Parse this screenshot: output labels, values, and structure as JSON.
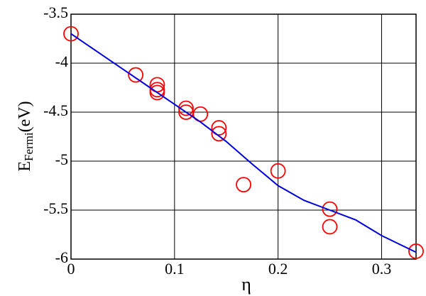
{
  "chart_data": {
    "type": "scatter",
    "xlabel": "η",
    "ylabel": "E",
    "ylabel_sub": "Fermi",
    "ylabel_unit": "(eV)",
    "xlim": [
      0,
      0.3333
    ],
    "ylim": [
      -6,
      -3.5
    ],
    "xticks": [
      0,
      0.1,
      0.2,
      0.3
    ],
    "yticks": [
      -6,
      -5.5,
      -5,
      -4.5,
      -4,
      -3.5
    ],
    "grid": true,
    "series": [
      {
        "type": "scatter",
        "color": "#ff0000",
        "x": [
          0,
          0.0625,
          0.0833,
          0.0833,
          0.0833,
          0.1111,
          0.1111,
          0.125,
          0.1429,
          0.1429,
          0.1667,
          0.2,
          0.25,
          0.25,
          0.3333
        ],
        "values": [
          -3.7,
          -4.12,
          -4.22,
          -4.27,
          -4.3,
          -4.46,
          -4.5,
          -4.52,
          -4.66,
          -4.72,
          -5.24,
          -5.1,
          -5.49,
          -5.67,
          -5.92
        ]
      },
      {
        "type": "line",
        "color": "#0000dd",
        "x": [
          0,
          0.025,
          0.05,
          0.075,
          0.1,
          0.125,
          0.15,
          0.175,
          0.2,
          0.225,
          0.25,
          0.275,
          0.3,
          0.3333
        ],
        "values": [
          -3.7,
          -3.88,
          -4.06,
          -4.24,
          -4.42,
          -4.6,
          -4.8,
          -5.03,
          -5.25,
          -5.4,
          -5.5,
          -5.6,
          -5.76,
          -5.93
        ]
      }
    ]
  }
}
